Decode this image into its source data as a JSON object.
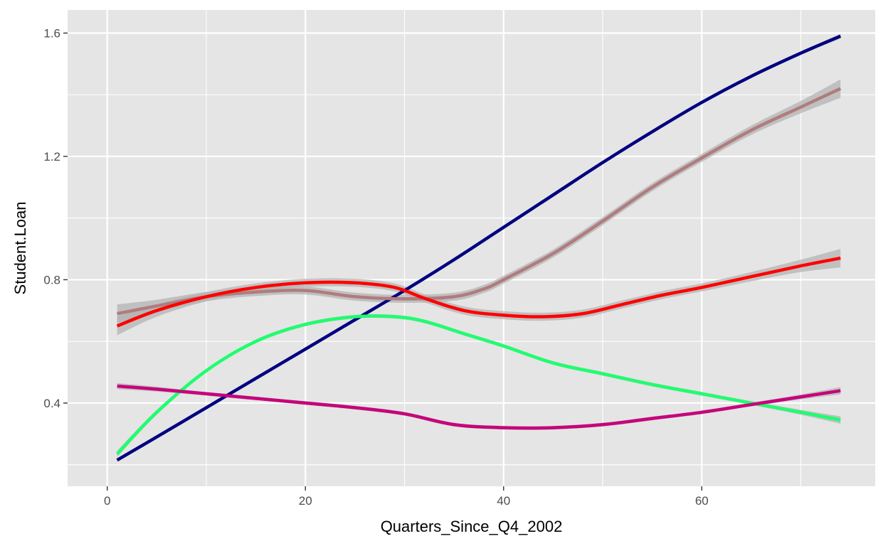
{
  "chart_data": {
    "type": "line",
    "title": "",
    "xlabel": "Quarters_Since_Q4_2002",
    "ylabel": "Student.Loan",
    "xlim": [
      -4,
      77.5
    ],
    "ylim": [
      0.13,
      1.675
    ],
    "x_ticks": [
      0,
      20,
      40,
      60
    ],
    "x_tick_labels": [
      "0",
      "20",
      "40",
      "60"
    ],
    "y_ticks": [
      0.4,
      0.8,
      1.2,
      1.6
    ],
    "y_tick_labels": [
      "0.4",
      "0.8",
      "1.2",
      "1.6"
    ],
    "grid": true,
    "legend": "none",
    "panel_background": "#e5e5e5",
    "grid_color": "#ffffff",
    "ribbon_color": "#b3b3b3",
    "series": [
      {
        "color": "#000080",
        "x": [
          1,
          5,
          10,
          15,
          20,
          25,
          30,
          35,
          40,
          45,
          50,
          55,
          60,
          65,
          70,
          74
        ],
        "y": [
          0.215,
          0.29,
          0.385,
          0.48,
          0.575,
          0.67,
          0.765,
          0.865,
          0.97,
          1.075,
          1.18,
          1.28,
          1.375,
          1.46,
          1.535,
          1.59
        ],
        "ci": [
          0.005,
          0.005,
          0.005,
          0.005,
          0.005,
          0.005,
          0.005,
          0.005,
          0.005,
          0.005,
          0.005,
          0.005,
          0.005,
          0.005,
          0.005,
          0.008
        ]
      },
      {
        "color": "#b07c7e",
        "x": [
          1,
          5,
          10,
          15,
          20,
          25,
          30,
          35,
          38,
          40,
          45,
          50,
          55,
          60,
          65,
          70,
          74
        ],
        "y": [
          0.69,
          0.715,
          0.745,
          0.76,
          0.765,
          0.745,
          0.738,
          0.745,
          0.77,
          0.8,
          0.885,
          0.99,
          1.1,
          1.195,
          1.285,
          1.36,
          1.42
        ],
        "ci": [
          0.03,
          0.02,
          0.015,
          0.013,
          0.013,
          0.013,
          0.013,
          0.013,
          0.013,
          0.013,
          0.013,
          0.013,
          0.013,
          0.013,
          0.015,
          0.02,
          0.03
        ]
      },
      {
        "color": "#ff0000",
        "x": [
          1,
          5,
          10,
          15,
          20,
          25,
          29,
          32,
          36,
          40,
          44,
          48,
          52,
          56,
          60,
          65,
          70,
          74
        ],
        "y": [
          0.65,
          0.7,
          0.745,
          0.775,
          0.79,
          0.79,
          0.775,
          0.74,
          0.7,
          0.685,
          0.68,
          0.69,
          0.72,
          0.75,
          0.775,
          0.81,
          0.845,
          0.87
        ],
        "ci": [
          0.03,
          0.02,
          0.015,
          0.013,
          0.013,
          0.013,
          0.013,
          0.013,
          0.013,
          0.013,
          0.013,
          0.013,
          0.013,
          0.013,
          0.013,
          0.015,
          0.02,
          0.03
        ]
      },
      {
        "color": "#1eff6e",
        "x": [
          1,
          5,
          10,
          15,
          20,
          25,
          29,
          32,
          36,
          40,
          45,
          50,
          55,
          60,
          65,
          70,
          74
        ],
        "y": [
          0.235,
          0.37,
          0.505,
          0.6,
          0.655,
          0.68,
          0.68,
          0.665,
          0.625,
          0.585,
          0.53,
          0.495,
          0.46,
          0.43,
          0.4,
          0.37,
          0.345
        ],
        "ci": [
          0.01,
          0.008,
          0.006,
          0.006,
          0.006,
          0.006,
          0.006,
          0.006,
          0.006,
          0.006,
          0.006,
          0.006,
          0.006,
          0.006,
          0.006,
          0.008,
          0.012
        ]
      },
      {
        "color": "#c7007c",
        "x": [
          1,
          5,
          10,
          15,
          20,
          25,
          30,
          35,
          40,
          45,
          50,
          55,
          60,
          65,
          70,
          74
        ],
        "y": [
          0.455,
          0.445,
          0.43,
          0.415,
          0.4,
          0.385,
          0.365,
          0.33,
          0.32,
          0.32,
          0.33,
          0.35,
          0.37,
          0.395,
          0.42,
          0.44
        ],
        "ci": [
          0.01,
          0.008,
          0.006,
          0.006,
          0.006,
          0.006,
          0.006,
          0.006,
          0.006,
          0.006,
          0.006,
          0.006,
          0.006,
          0.006,
          0.008,
          0.012
        ]
      }
    ]
  }
}
